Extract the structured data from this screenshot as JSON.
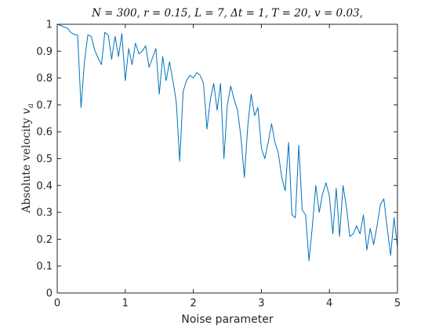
{
  "chart_data": {
    "type": "line",
    "title": "N = 300, r = 0.15, L = 7, Δt = 1, T = 20, v = 0.03,",
    "xlabel": "Noise parameter",
    "ylabel": "Absolute velocity v_a",
    "ylabel_text": "Absolute velocity ",
    "ylabel_symbol": "v",
    "ylabel_sub": "a",
    "xlim": [
      0,
      5
    ],
    "ylim": [
      0,
      1
    ],
    "grid": false,
    "legend": "none",
    "color": "#0072bd",
    "x_ticks": [
      "0",
      "1",
      "2",
      "3",
      "4",
      "5"
    ],
    "y_ticks": [
      "0",
      "0.1",
      "0.2",
      "0.3",
      "0.4",
      "0.5",
      "0.6",
      "0.7",
      "0.8",
      "0.9",
      "1"
    ],
    "series": [
      {
        "x": [
          0,
          0.05,
          0.1,
          0.15,
          0.2,
          0.25,
          0.3,
          0.35,
          0.4,
          0.45,
          0.5,
          0.55,
          0.6,
          0.65,
          0.7,
          0.75,
          0.8,
          0.85,
          0.9,
          0.95,
          1,
          1.05,
          1.1,
          1.15,
          1.2,
          1.25,
          1.3,
          1.35,
          1.4,
          1.45,
          1.5,
          1.55,
          1.6,
          1.65,
          1.7,
          1.75,
          1.8,
          1.85,
          1.9,
          1.95,
          2,
          2.05,
          2.1,
          2.15,
          2.2,
          2.25,
          2.3,
          2.35,
          2.4,
          2.45,
          2.5,
          2.55,
          2.6,
          2.65,
          2.7,
          2.75,
          2.8,
          2.85,
          2.9,
          2.95,
          3,
          3.05,
          3.1,
          3.15,
          3.2,
          3.25,
          3.3,
          3.35,
          3.4,
          3.45,
          3.5,
          3.55,
          3.6,
          3.65,
          3.7,
          3.75,
          3.8,
          3.85,
          3.9,
          3.95,
          4,
          4.05,
          4.1,
          4.15,
          4.2,
          4.25,
          4.3,
          4.35,
          4.4,
          4.45,
          4.5,
          4.55,
          4.6,
          4.65,
          4.7,
          4.75,
          4.8,
          4.85,
          4.9,
          4.95,
          5
        ],
        "y": [
          1.0,
          0.996,
          0.99,
          0.985,
          0.97,
          0.962,
          0.96,
          0.69,
          0.86,
          0.96,
          0.955,
          0.905,
          0.875,
          0.85,
          0.97,
          0.96,
          0.87,
          0.955,
          0.88,
          0.965,
          0.79,
          0.91,
          0.85,
          0.93,
          0.89,
          0.9,
          0.92,
          0.84,
          0.875,
          0.91,
          0.74,
          0.88,
          0.79,
          0.86,
          0.79,
          0.71,
          0.49,
          0.75,
          0.79,
          0.81,
          0.8,
          0.82,
          0.81,
          0.78,
          0.61,
          0.72,
          0.78,
          0.68,
          0.78,
          0.5,
          0.7,
          0.77,
          0.72,
          0.68,
          0.58,
          0.43,
          0.62,
          0.74,
          0.66,
          0.69,
          0.54,
          0.5,
          0.56,
          0.63,
          0.56,
          0.52,
          0.43,
          0.38,
          0.56,
          0.29,
          0.28,
          0.55,
          0.31,
          0.29,
          0.12,
          0.25,
          0.4,
          0.3,
          0.37,
          0.41,
          0.36,
          0.22,
          0.39,
          0.21,
          0.4,
          0.32,
          0.21,
          0.22,
          0.25,
          0.22,
          0.29,
          0.16,
          0.24,
          0.18,
          0.25,
          0.33,
          0.35,
          0.24,
          0.14,
          0.28,
          0.17
        ]
      }
    ]
  }
}
